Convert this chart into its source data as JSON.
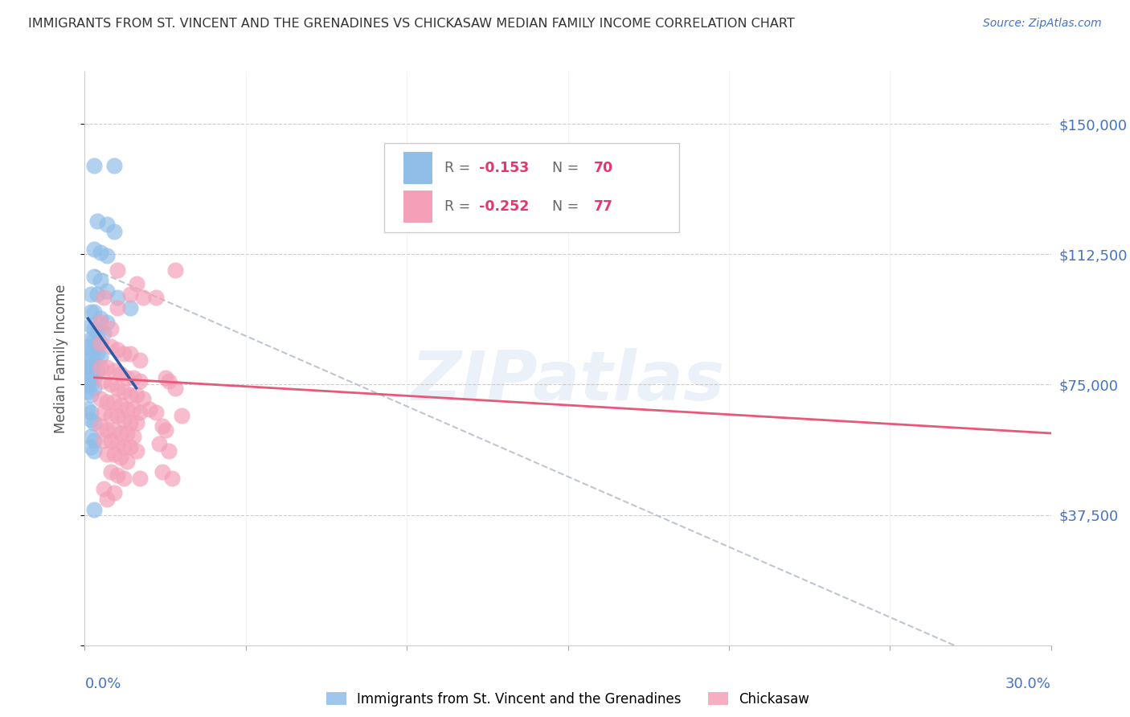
{
  "title": "IMMIGRANTS FROM ST. VINCENT AND THE GRENADINES VS CHICKASAW MEDIAN FAMILY INCOME CORRELATION CHART",
  "source": "Source: ZipAtlas.com",
  "ylabel": "Median Family Income",
  "y_ticks": [
    0,
    37500,
    75000,
    112500,
    150000
  ],
  "y_tick_labels": [
    "",
    "$37,500",
    "$75,000",
    "$112,500",
    "$150,000"
  ],
  "xlim": [
    0.0,
    0.3
  ],
  "ylim": [
    0,
    165000
  ],
  "blue_color": "#90BEE8",
  "pink_color": "#F4A0B8",
  "blue_line_color": "#2B5BA8",
  "pink_line_color": "#E85878",
  "dashed_line_color": "#B8C0CC",
  "background_color": "#FFFFFF",
  "right_label_color": "#4472C4",
  "blue_line": [
    [
      0.001,
      94000
    ],
    [
      0.016,
      74000
    ]
  ],
  "pink_line": [
    [
      0.003,
      77000
    ],
    [
      0.3,
      61000
    ]
  ],
  "dashed_line": [
    [
      0.003,
      108000
    ],
    [
      0.27,
      0
    ]
  ],
  "blue_scatter": [
    [
      0.003,
      138000
    ],
    [
      0.009,
      138000
    ],
    [
      0.004,
      122000
    ],
    [
      0.007,
      121000
    ],
    [
      0.009,
      119000
    ],
    [
      0.003,
      114000
    ],
    [
      0.005,
      113000
    ],
    [
      0.007,
      112000
    ],
    [
      0.003,
      106000
    ],
    [
      0.005,
      105000
    ],
    [
      0.002,
      101000
    ],
    [
      0.004,
      101000
    ],
    [
      0.007,
      102000
    ],
    [
      0.01,
      100000
    ],
    [
      0.014,
      97000
    ],
    [
      0.002,
      96000
    ],
    [
      0.003,
      96000
    ],
    [
      0.005,
      94000
    ],
    [
      0.007,
      93000
    ],
    [
      0.002,
      92000
    ],
    [
      0.003,
      91000
    ],
    [
      0.004,
      90000
    ],
    [
      0.006,
      90000
    ],
    [
      0.002,
      88000
    ],
    [
      0.003,
      88000
    ],
    [
      0.004,
      87000
    ],
    [
      0.001,
      86000
    ],
    [
      0.002,
      85000
    ],
    [
      0.003,
      85000
    ],
    [
      0.004,
      84000
    ],
    [
      0.005,
      83000
    ],
    [
      0.001,
      82000
    ],
    [
      0.002,
      82000
    ],
    [
      0.003,
      81000
    ],
    [
      0.001,
      80000
    ],
    [
      0.002,
      80000
    ],
    [
      0.003,
      79000
    ],
    [
      0.004,
      79000
    ],
    [
      0.001,
      78000
    ],
    [
      0.002,
      77000
    ],
    [
      0.003,
      77000
    ],
    [
      0.001,
      75000
    ],
    [
      0.002,
      75000
    ],
    [
      0.003,
      74000
    ],
    [
      0.001,
      73000
    ],
    [
      0.002,
      72000
    ],
    [
      0.001,
      68000
    ],
    [
      0.002,
      67000
    ],
    [
      0.002,
      65000
    ],
    [
      0.003,
      64000
    ],
    [
      0.002,
      60000
    ],
    [
      0.003,
      59000
    ],
    [
      0.002,
      57000
    ],
    [
      0.003,
      56000
    ],
    [
      0.003,
      39000
    ]
  ],
  "pink_scatter": [
    [
      0.006,
      100000
    ],
    [
      0.01,
      97000
    ],
    [
      0.005,
      93000
    ],
    [
      0.008,
      91000
    ],
    [
      0.01,
      108000
    ],
    [
      0.016,
      104000
    ],
    [
      0.018,
      100000
    ],
    [
      0.022,
      100000
    ],
    [
      0.014,
      101000
    ],
    [
      0.028,
      108000
    ],
    [
      0.005,
      87000
    ],
    [
      0.008,
      86000
    ],
    [
      0.01,
      85000
    ],
    [
      0.012,
      84000
    ],
    [
      0.014,
      84000
    ],
    [
      0.017,
      82000
    ],
    [
      0.005,
      80000
    ],
    [
      0.007,
      80000
    ],
    [
      0.009,
      79000
    ],
    [
      0.011,
      78000
    ],
    [
      0.013,
      77000
    ],
    [
      0.015,
      77000
    ],
    [
      0.017,
      76000
    ],
    [
      0.006,
      76000
    ],
    [
      0.008,
      75000
    ],
    [
      0.01,
      74000
    ],
    [
      0.012,
      73000
    ],
    [
      0.014,
      72000
    ],
    [
      0.016,
      72000
    ],
    [
      0.018,
      71000
    ],
    [
      0.005,
      71000
    ],
    [
      0.007,
      70000
    ],
    [
      0.009,
      70000
    ],
    [
      0.011,
      69000
    ],
    [
      0.013,
      68000
    ],
    [
      0.015,
      68000
    ],
    [
      0.017,
      67000
    ],
    [
      0.006,
      67000
    ],
    [
      0.008,
      66000
    ],
    [
      0.01,
      66000
    ],
    [
      0.012,
      65000
    ],
    [
      0.014,
      64000
    ],
    [
      0.016,
      64000
    ],
    [
      0.005,
      63000
    ],
    [
      0.007,
      62000
    ],
    [
      0.009,
      62000
    ],
    [
      0.011,
      61000
    ],
    [
      0.013,
      61000
    ],
    [
      0.015,
      60000
    ],
    [
      0.006,
      59000
    ],
    [
      0.008,
      59000
    ],
    [
      0.01,
      58000
    ],
    [
      0.012,
      57000
    ],
    [
      0.014,
      57000
    ],
    [
      0.016,
      56000
    ],
    [
      0.007,
      55000
    ],
    [
      0.009,
      55000
    ],
    [
      0.011,
      54000
    ],
    [
      0.013,
      53000
    ],
    [
      0.008,
      50000
    ],
    [
      0.01,
      49000
    ],
    [
      0.012,
      48000
    ],
    [
      0.017,
      48000
    ],
    [
      0.006,
      45000
    ],
    [
      0.009,
      44000
    ],
    [
      0.007,
      42000
    ],
    [
      0.025,
      77000
    ],
    [
      0.026,
      76000
    ],
    [
      0.028,
      74000
    ],
    [
      0.02,
      68000
    ],
    [
      0.022,
      67000
    ],
    [
      0.024,
      63000
    ],
    [
      0.025,
      62000
    ],
    [
      0.023,
      58000
    ],
    [
      0.026,
      56000
    ],
    [
      0.03,
      66000
    ],
    [
      0.024,
      50000
    ],
    [
      0.027,
      48000
    ]
  ]
}
